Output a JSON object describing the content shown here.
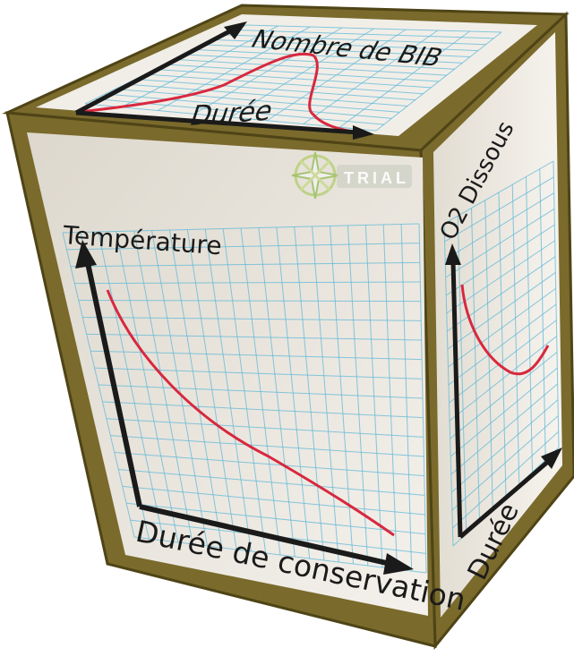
{
  "cube": {
    "colors": {
      "frame": "#7a6a2c",
      "frame_dark": "#4f4416",
      "panel": "#ebe7df",
      "grid": "#5fb8d8",
      "curve": "#d8283e",
      "axis": "#1a1a1a"
    },
    "faces": {
      "top": {
        "ylabel": "Nombre de BIB",
        "xlabel": "Durée",
        "curve_shape": "bell"
      },
      "front": {
        "ylabel": "Température",
        "xlabel": "Durée de conservation",
        "curve_shape": "decay"
      },
      "side": {
        "ylabel": "O2 Dissous",
        "xlabel": "Durée",
        "curve_shape": "u-shaped"
      }
    },
    "watermark": {
      "text": "TRIAL",
      "icon": "trial-star-logo-icon"
    }
  }
}
